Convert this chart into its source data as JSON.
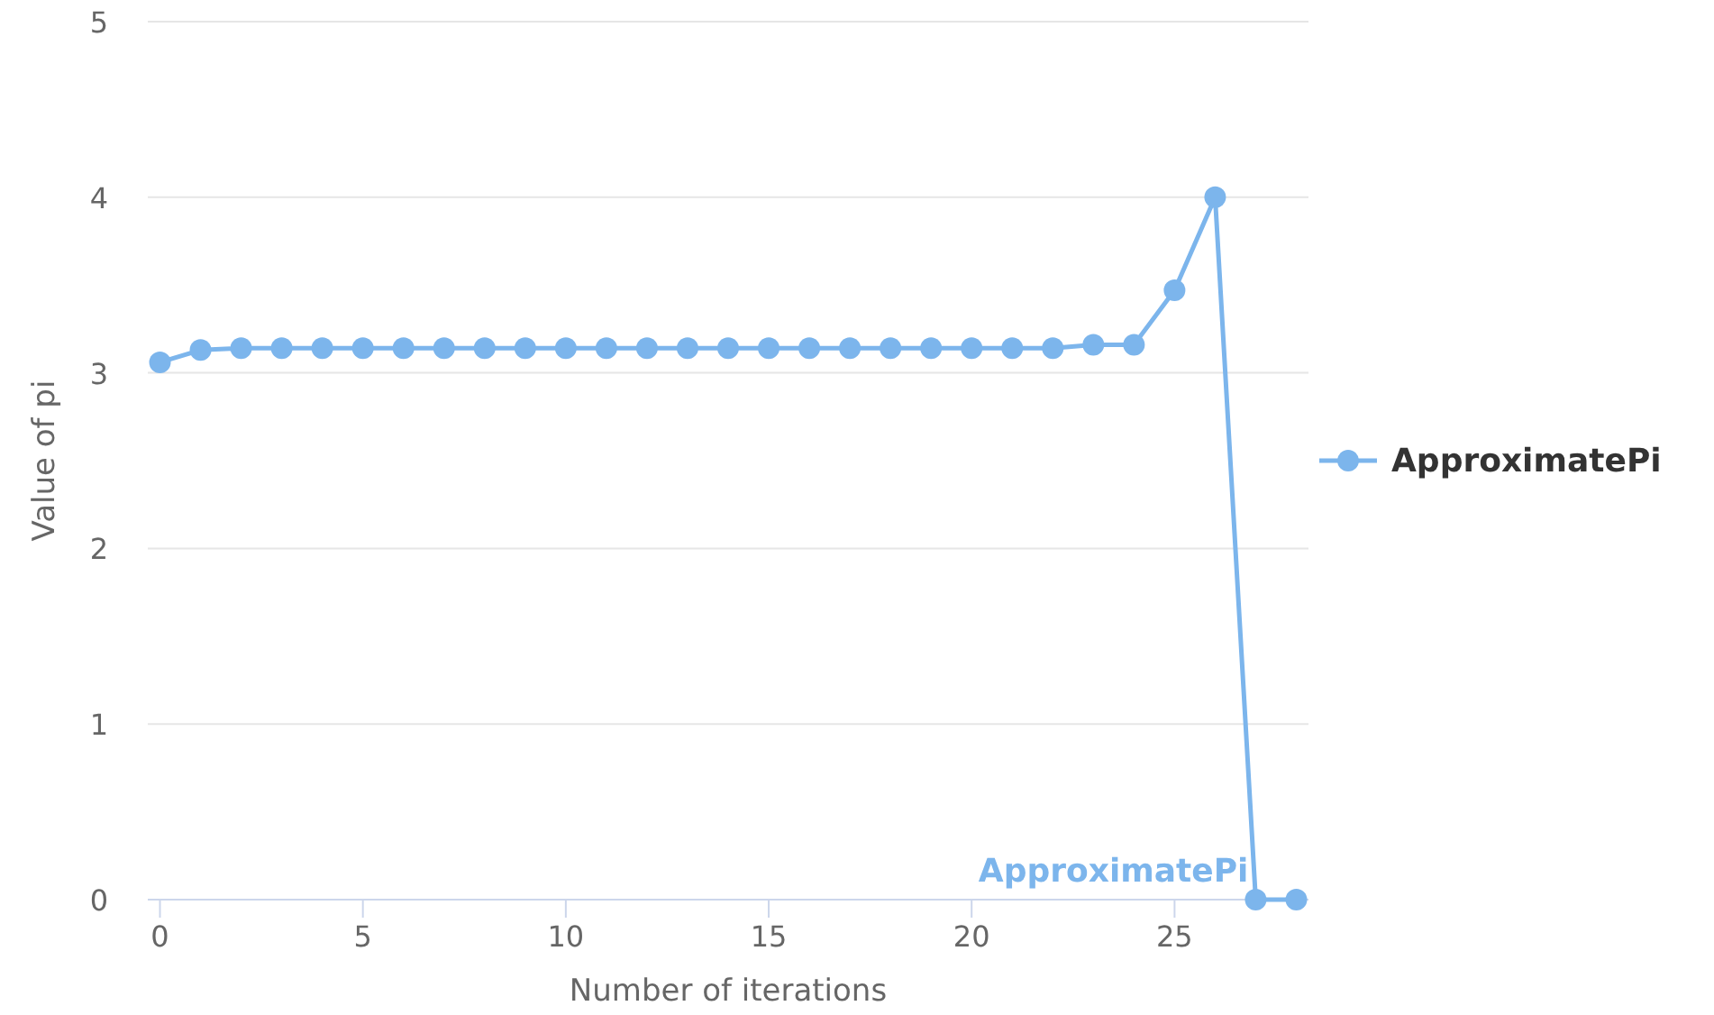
{
  "chart_data": {
    "type": "line",
    "xlabel": "Number of iterations",
    "ylabel": "Value of pi",
    "x": [
      0,
      1,
      2,
      3,
      4,
      5,
      6,
      7,
      8,
      9,
      10,
      11,
      12,
      13,
      14,
      15,
      16,
      17,
      18,
      19,
      20,
      21,
      22,
      23,
      24,
      25,
      26,
      27,
      28
    ],
    "series": [
      {
        "name": "ApproximatePi",
        "color": "#7cb5ec",
        "values": [
          3.06,
          3.13,
          3.14,
          3.14,
          3.14,
          3.14,
          3.14,
          3.14,
          3.14,
          3.14,
          3.14,
          3.14,
          3.14,
          3.14,
          3.14,
          3.14,
          3.14,
          3.14,
          3.14,
          3.14,
          3.14,
          3.14,
          3.14,
          3.16,
          3.16,
          3.47,
          4.0,
          0,
          0
        ]
      }
    ],
    "xlim": [
      -0.3,
      28.3
    ],
    "xticks": [
      0,
      5,
      10,
      15,
      20,
      25
    ],
    "ylim": [
      0,
      5
    ],
    "yticks": [
      0,
      1,
      2,
      3,
      4,
      5
    ],
    "grid": "y",
    "legend": "right",
    "marker": "circle",
    "line_style": "solid"
  }
}
